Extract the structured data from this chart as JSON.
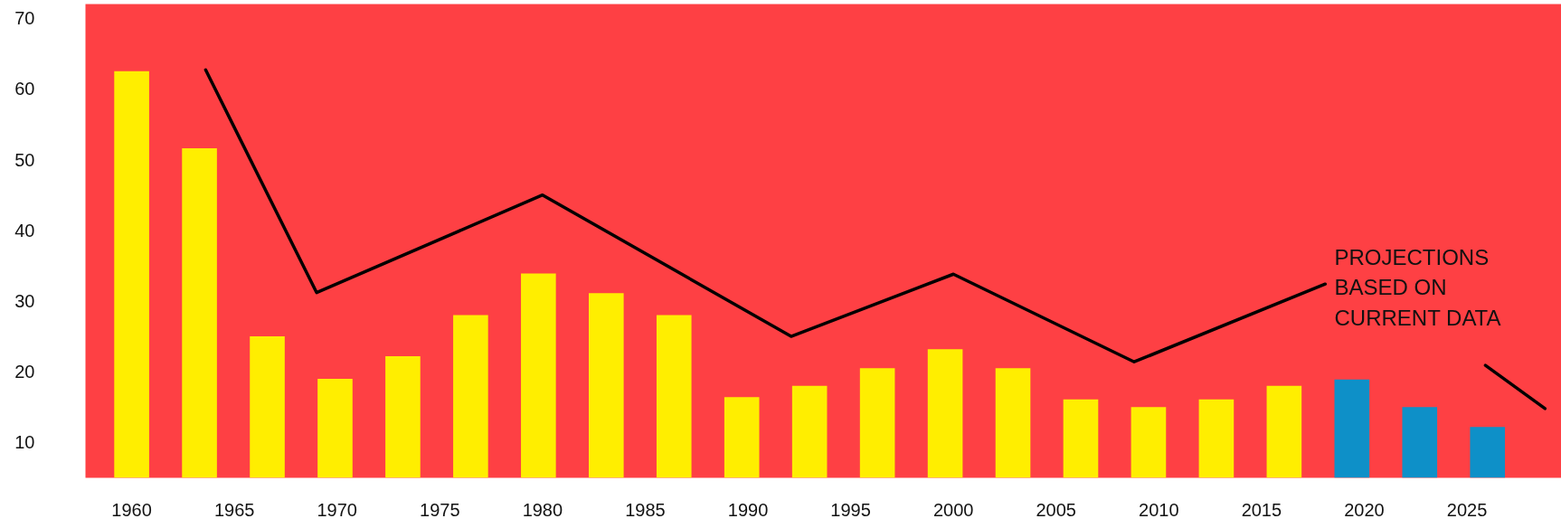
{
  "chart_data": {
    "type": "bar",
    "x": [
      1960,
      1963.3,
      1966.6,
      1969.9,
      1973.2,
      1976.5,
      1979.8,
      1983.1,
      1986.4,
      1989.7,
      1993,
      1996.3,
      1999.6,
      2002.9,
      2006.2,
      2009.5,
      2012.8,
      2016.1,
      2019.4,
      2022.7,
      2026
    ],
    "series": [
      {
        "values": [
          62.5,
          51.6,
          25,
          19,
          22.2,
          28,
          33.9,
          31.1,
          28,
          16.4,
          18,
          20.5,
          23.2,
          20.5,
          16.1,
          15,
          16.1,
          18,
          18.9,
          15,
          12.2
        ],
        "colors": [
          "#ffee00",
          "#ffee00",
          "#ffee00",
          "#ffee00",
          "#ffee00",
          "#ffee00",
          "#ffee00",
          "#ffee00",
          "#ffee00",
          "#ffee00",
          "#ffee00",
          "#ffee00",
          "#ffee00",
          "#ffee00",
          "#ffee00",
          "#ffee00",
          "#ffee00",
          "#ffee00",
          "#0e90c8",
          "#0e90c8",
          "#0e90c8"
        ]
      },
      {
        "type": "line",
        "color": "#000000",
        "x": [
          1963.6,
          1969.0,
          1980.0,
          1992.1,
          2000.0,
          2008.8,
          2018.1,
          null,
          2025.9,
          2028.8
        ],
        "values": [
          62.7,
          31.2,
          45,
          25,
          33.8,
          21.4,
          32.4,
          null,
          20.9,
          14.8
        ]
      }
    ],
    "xlim": [
      1957.75,
      2029.6
    ],
    "ylim": [
      5,
      72
    ],
    "xticks": [
      1960,
      1965,
      1970,
      1975,
      1980,
      1985,
      1990,
      1995,
      2000,
      2005,
      2010,
      2015,
      2020,
      2025
    ],
    "yticks": [
      10,
      20,
      30,
      40,
      50,
      60,
      70
    ],
    "grid": false,
    "annotations": [
      "PROJECTIONS\nBASED ON\nCURRENT DATA"
    ]
  }
}
